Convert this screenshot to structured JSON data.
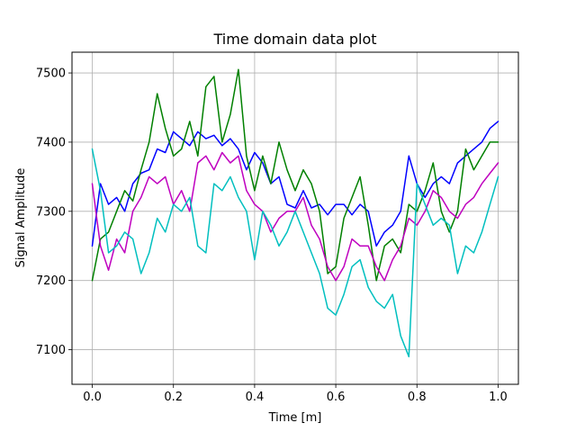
{
  "chart_data": {
    "type": "line",
    "title": "Time domain data plot",
    "xlabel": "Time [m]",
    "ylabel": "Signal Amplitude",
    "xlim": [
      -0.05,
      1.05
    ],
    "ylim": [
      7050,
      7530
    ],
    "xticks": [
      0.0,
      0.2,
      0.4,
      0.6,
      0.8,
      1.0
    ],
    "xtick_labels": [
      "0.0",
      "0.2",
      "0.4",
      "0.6",
      "0.8",
      "1.0"
    ],
    "yticks": [
      7100,
      7200,
      7300,
      7400,
      7500
    ],
    "ytick_labels": [
      "7100",
      "7200",
      "7300",
      "7400",
      "7500"
    ],
    "grid": true,
    "legend": "none",
    "series": [
      {
        "color": "#0000ff",
        "x": [
          0.0,
          0.02,
          0.04,
          0.06,
          0.08,
          0.1,
          0.12,
          0.14,
          0.16,
          0.18,
          0.2,
          0.22,
          0.24,
          0.26,
          0.28,
          0.3,
          0.32,
          0.34,
          0.36,
          0.38,
          0.4,
          0.42,
          0.44,
          0.46,
          0.48,
          0.5,
          0.52,
          0.54,
          0.56,
          0.58,
          0.6,
          0.62,
          0.64,
          0.66,
          0.68,
          0.7,
          0.72,
          0.74,
          0.76,
          0.78,
          0.8,
          0.82,
          0.84,
          0.86,
          0.88,
          0.9,
          0.92,
          0.94,
          0.96,
          0.98,
          1.0
        ],
        "values": [
          7250,
          7340,
          7310,
          7320,
          7300,
          7340,
          7355,
          7360,
          7390,
          7385,
          7415,
          7405,
          7395,
          7415,
          7405,
          7410,
          7395,
          7405,
          7390,
          7360,
          7385,
          7370,
          7340,
          7350,
          7310,
          7305,
          7330,
          7305,
          7310,
          7295,
          7310,
          7310,
          7295,
          7310,
          7300,
          7250,
          7270,
          7280,
          7300,
          7380,
          7340,
          7320,
          7340,
          7350,
          7340,
          7370,
          7380,
          7390,
          7400,
          7420,
          7430
        ]
      },
      {
        "color": "#008000",
        "x": [
          0.0,
          0.02,
          0.04,
          0.06,
          0.08,
          0.1,
          0.12,
          0.14,
          0.16,
          0.18,
          0.2,
          0.22,
          0.24,
          0.26,
          0.28,
          0.3,
          0.32,
          0.34,
          0.36,
          0.38,
          0.4,
          0.42,
          0.44,
          0.46,
          0.48,
          0.5,
          0.52,
          0.54,
          0.56,
          0.58,
          0.6,
          0.62,
          0.64,
          0.66,
          0.68,
          0.7,
          0.72,
          0.74,
          0.76,
          0.78,
          0.8,
          0.82,
          0.84,
          0.86,
          0.88,
          0.9,
          0.92,
          0.94,
          0.96,
          0.98,
          1.0
        ],
        "values": [
          7200,
          7260,
          7270,
          7300,
          7330,
          7315,
          7360,
          7400,
          7470,
          7420,
          7380,
          7390,
          7430,
          7380,
          7480,
          7495,
          7400,
          7440,
          7505,
          7380,
          7330,
          7380,
          7340,
          7400,
          7360,
          7330,
          7360,
          7340,
          7300,
          7210,
          7220,
          7290,
          7320,
          7350,
          7280,
          7200,
          7250,
          7260,
          7240,
          7310,
          7300,
          7330,
          7370,
          7300,
          7270,
          7300,
          7390,
          7360,
          7380,
          7400,
          7400
        ]
      },
      {
        "color": "#bf00bf",
        "x": [
          0.0,
          0.02,
          0.04,
          0.06,
          0.08,
          0.1,
          0.12,
          0.14,
          0.16,
          0.18,
          0.2,
          0.22,
          0.24,
          0.26,
          0.28,
          0.3,
          0.32,
          0.34,
          0.36,
          0.38,
          0.4,
          0.42,
          0.44,
          0.46,
          0.48,
          0.5,
          0.52,
          0.54,
          0.56,
          0.58,
          0.6,
          0.62,
          0.64,
          0.66,
          0.68,
          0.7,
          0.72,
          0.74,
          0.76,
          0.78,
          0.8,
          0.82,
          0.84,
          0.86,
          0.88,
          0.9,
          0.92,
          0.94,
          0.96,
          0.98,
          1.0
        ],
        "values": [
          7340,
          7250,
          7215,
          7260,
          7240,
          7300,
          7320,
          7350,
          7340,
          7350,
          7310,
          7330,
          7300,
          7370,
          7380,
          7360,
          7385,
          7370,
          7380,
          7330,
          7310,
          7300,
          7270,
          7290,
          7300,
          7300,
          7320,
          7280,
          7260,
          7220,
          7200,
          7220,
          7260,
          7250,
          7250,
          7220,
          7200,
          7230,
          7250,
          7290,
          7280,
          7300,
          7330,
          7320,
          7300,
          7290,
          7310,
          7320,
          7340,
          7355,
          7370
        ]
      },
      {
        "color": "#00bfbf",
        "x": [
          0.0,
          0.02,
          0.04,
          0.06,
          0.08,
          0.1,
          0.12,
          0.14,
          0.16,
          0.18,
          0.2,
          0.22,
          0.24,
          0.26,
          0.28,
          0.3,
          0.32,
          0.34,
          0.36,
          0.38,
          0.4,
          0.42,
          0.44,
          0.46,
          0.48,
          0.5,
          0.52,
          0.54,
          0.56,
          0.58,
          0.6,
          0.62,
          0.64,
          0.66,
          0.68,
          0.7,
          0.72,
          0.74,
          0.76,
          0.78,
          0.8,
          0.82,
          0.84,
          0.86,
          0.88,
          0.9,
          0.92,
          0.94,
          0.96,
          0.98,
          1.0
        ],
        "values": [
          7390,
          7330,
          7240,
          7250,
          7270,
          7260,
          7210,
          7240,
          7290,
          7270,
          7310,
          7300,
          7320,
          7250,
          7240,
          7340,
          7330,
          7350,
          7320,
          7300,
          7230,
          7300,
          7280,
          7250,
          7270,
          7300,
          7270,
          7240,
          7210,
          7160,
          7150,
          7180,
          7220,
          7230,
          7190,
          7170,
          7160,
          7180,
          7120,
          7090,
          7340,
          7310,
          7280,
          7290,
          7280,
          7210,
          7250,
          7240,
          7270,
          7310,
          7350
        ]
      }
    ]
  }
}
